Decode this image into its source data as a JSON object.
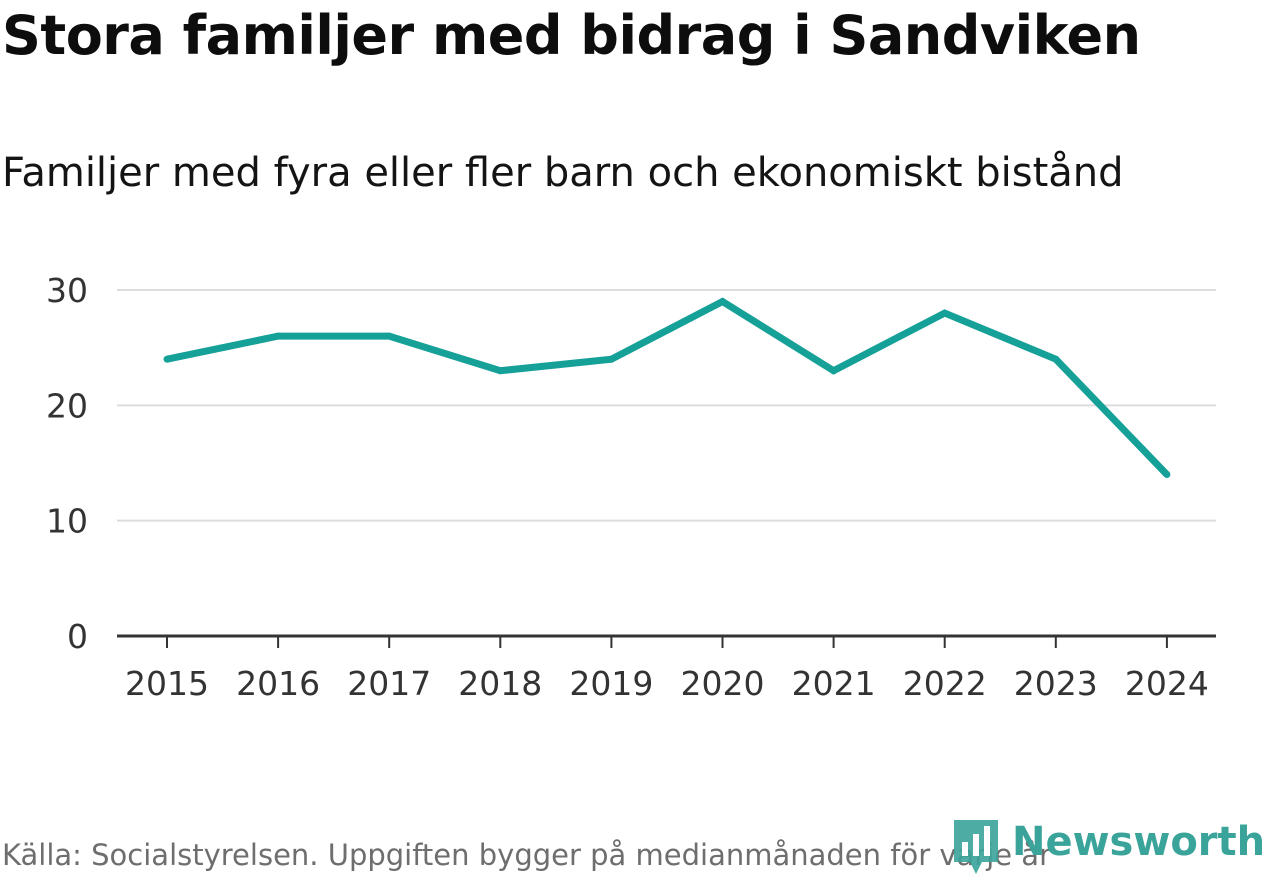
{
  "header": {
    "title": "Stora familjer med bidrag i Sandviken",
    "subtitle": "Familjer med fyra eller fler barn och ekonomiskt bistånd"
  },
  "footer": {
    "source": "Källa: Socialstyrelsen. Uppgiften bygger på medianmånaden för varje år",
    "brand": "Newsworthy",
    "brand_icon": "newsworthy-logo-icon",
    "brand_color": "#3aa39a"
  },
  "chart_data": {
    "type": "line",
    "title": "Stora familjer med bidrag i Sandviken",
    "subtitle": "Familjer med fyra eller fler barn och ekonomiskt bistånd",
    "xlabel": "",
    "ylabel": "",
    "x": [
      "2015",
      "2016",
      "2017",
      "2018",
      "2019",
      "2020",
      "2021",
      "2022",
      "2023",
      "2024"
    ],
    "series": [
      {
        "values": [
          24,
          26,
          26,
          23,
          24,
          29,
          23,
          28,
          24,
          14
        ],
        "color": "#15a098"
      }
    ],
    "yticks": [
      0,
      10,
      20,
      30
    ],
    "ylim": [
      0,
      30
    ],
    "grid": true,
    "gridline_color": "#dddddd",
    "axis_color": "#333333"
  }
}
